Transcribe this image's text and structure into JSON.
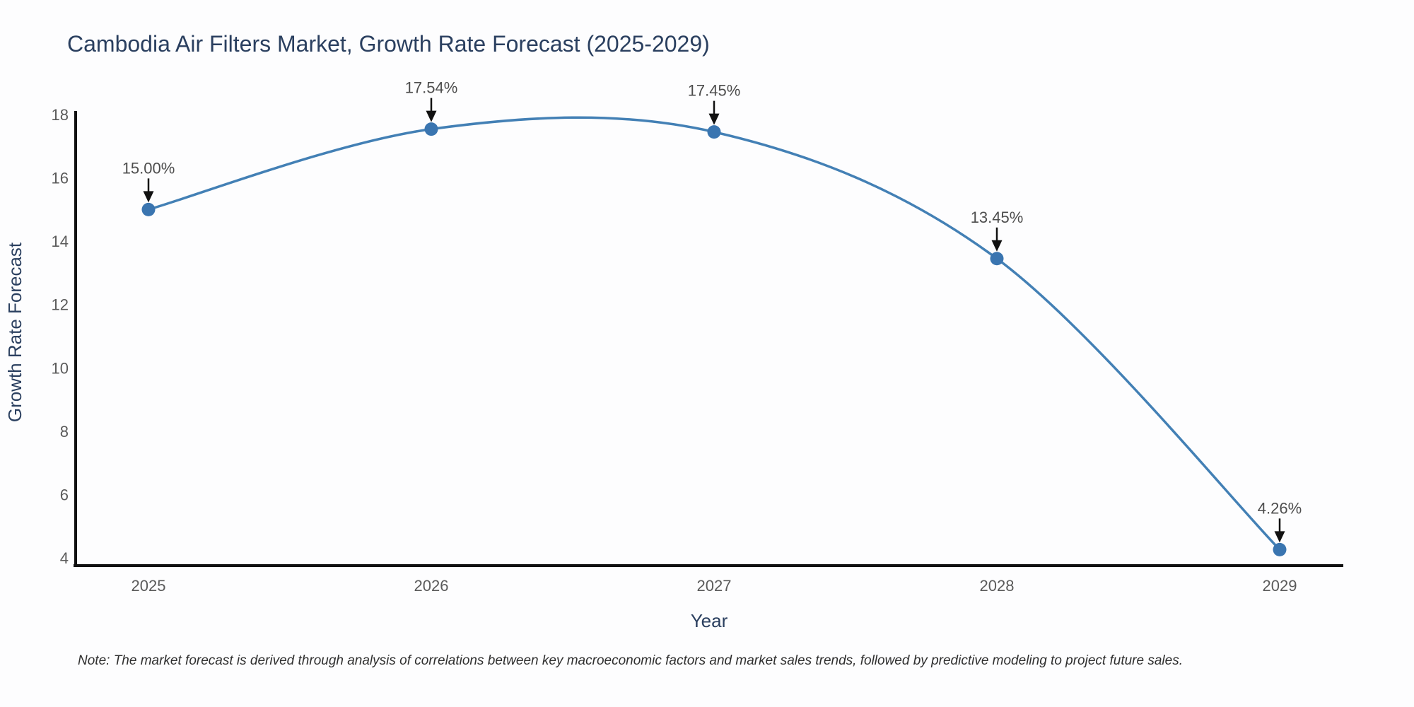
{
  "chart_data": {
    "type": "line",
    "title": "Cambodia Air Filters Market, Growth Rate Forecast (2025-2029)",
    "xlabel": "Year",
    "ylabel": "Growth Rate Forecast",
    "categories": [
      "2025",
      "2026",
      "2027",
      "2028",
      "2029"
    ],
    "x": [
      2025,
      2026,
      2027,
      2028,
      2029
    ],
    "series": [
      {
        "name": "Growth Rate Forecast",
        "values": [
          15.0,
          17.54,
          17.45,
          13.45,
          4.26
        ]
      }
    ],
    "annotations": [
      "15.00%",
      "17.54%",
      "17.45%",
      "13.45%",
      "4.26%"
    ],
    "yticks": [
      4,
      6,
      8,
      10,
      12,
      14,
      16,
      18
    ],
    "ylim": [
      4,
      18
    ],
    "line_shape": "spline",
    "grid": false,
    "legend": "none",
    "colors": {
      "line": "#4380b5",
      "marker": "#3a75b0",
      "axis": "#111111",
      "arrow": "#111111",
      "title_text": "#2a3f5f",
      "axis_title_text": "#2a3f5f",
      "tick_text": "#5a5a5a",
      "annotation_text": "#4d4d4d"
    }
  },
  "note": {
    "text": "Note: The market forecast is derived through analysis of correlations between key macroeconomic factors and market sales trends, followed by predictive modeling to project future sales."
  }
}
